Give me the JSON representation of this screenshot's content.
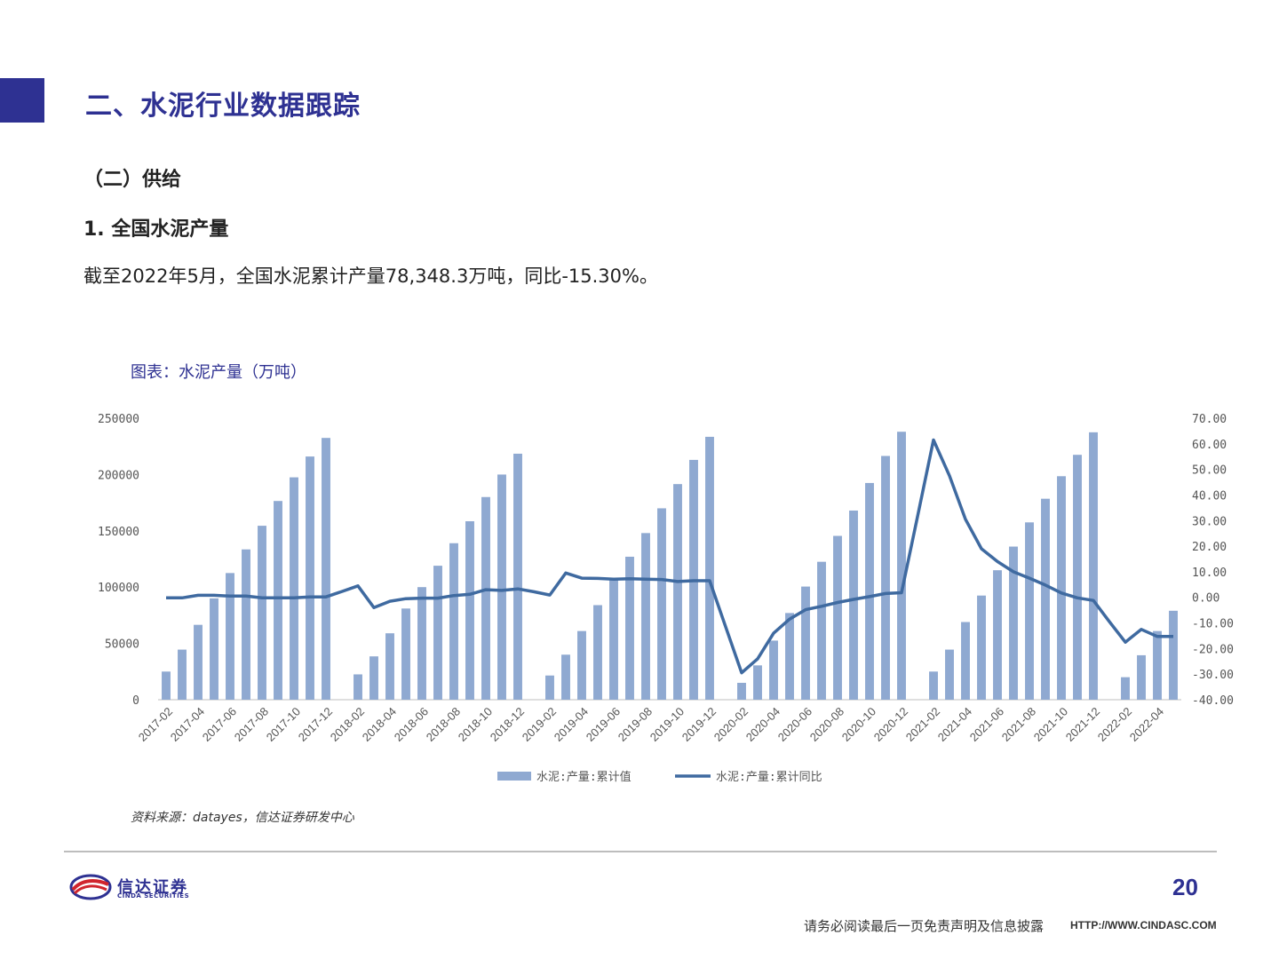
{
  "header": {
    "section_title": "二、水泥行业数据跟踪",
    "sub_heading": "（二）供给",
    "sub_heading2": "1. 全国水泥产量",
    "body_text": "截至2022年5月，全国水泥累计产量78,348.3万吨，同比-15.30%。",
    "chart_caption": "图表：水泥产量（万吨）"
  },
  "colors": {
    "brand": "#2e3192",
    "bar": "#8fa9d1",
    "line": "#3f6aa0",
    "accent_red": "#d0252d"
  },
  "chart_data": {
    "type": "bar",
    "title": "图表：水泥产量（万吨）",
    "categories": [
      "2017-02",
      "2017-03",
      "2017-04",
      "2017-05",
      "2017-06",
      "2017-07",
      "2017-08",
      "2017-09",
      "2017-10",
      "2017-11",
      "2017-12",
      "2018-01",
      "2018-02",
      "2018-03",
      "2018-04",
      "2018-05",
      "2018-06",
      "2018-07",
      "2018-08",
      "2018-09",
      "2018-10",
      "2018-11",
      "2018-12",
      "2019-01",
      "2019-02",
      "2019-03",
      "2019-04",
      "2019-05",
      "2019-06",
      "2019-07",
      "2019-08",
      "2019-09",
      "2019-10",
      "2019-11",
      "2019-12",
      "2020-01",
      "2020-02",
      "2020-03",
      "2020-04",
      "2020-05",
      "2020-06",
      "2020-07",
      "2020-08",
      "2020-09",
      "2020-10",
      "2020-11",
      "2020-12",
      "2021-01",
      "2021-02",
      "2021-03",
      "2021-04",
      "2021-05",
      "2021-06",
      "2021-07",
      "2021-08",
      "2021-09",
      "2021-10",
      "2021-11",
      "2021-12",
      "2022-01",
      "2022-02",
      "2022-03",
      "2022-04",
      "2022-05"
    ],
    "xtick_labels": [
      "2017-02",
      "2017-04",
      "2017-06",
      "2017-08",
      "2017-10",
      "2017-12",
      "2018-02",
      "2018-04",
      "2018-06",
      "2018-08",
      "2018-10",
      "2018-12",
      "2019-02",
      "2019-04",
      "2019-06",
      "2019-08",
      "2019-10",
      "2019-12",
      "2020-02",
      "2020-04",
      "2020-06",
      "2020-08",
      "2020-10",
      "2020-12",
      "2021-02",
      "2021-04",
      "2021-06",
      "2021-08",
      "2021-10",
      "2021-12",
      "2022-02",
      "2022-04"
    ],
    "series": [
      {
        "name": "水泥:产量:累计值",
        "type": "bar",
        "axis": "left",
        "values": [
          25000,
          44500,
          66500,
          90000,
          112500,
          133500,
          154500,
          176500,
          197500,
          216000,
          232500,
          null,
          22500,
          38500,
          59000,
          81000,
          100000,
          119000,
          139000,
          158500,
          180000,
          200000,
          218500,
          null,
          21500,
          40000,
          61000,
          84000,
          106500,
          127000,
          148000,
          170000,
          191500,
          213000,
          233500,
          null,
          15000,
          30500,
          52500,
          77000,
          100500,
          122500,
          145500,
          168000,
          192500,
          216500,
          238000,
          null,
          25000,
          44500,
          69000,
          92500,
          115000,
          136000,
          157500,
          178500,
          198500,
          217500,
          237500,
          null,
          20000,
          39500,
          61000,
          79000
        ]
      },
      {
        "name": "水泥:产量:累计同比",
        "type": "line",
        "axis": "right",
        "values": [
          -0.2,
          -0.2,
          0.8,
          0.8,
          0.5,
          0.5,
          -0.2,
          -0.2,
          -0.2,
          0.2,
          0.2,
          2.3,
          4.5,
          -4,
          -1.5,
          -0.5,
          -0.3,
          -0.3,
          0.7,
          1.2,
          3,
          2.7,
          3.3,
          2.2,
          0.9,
          9.5,
          7.5,
          7.4,
          7.1,
          7.3,
          7.1,
          7,
          6.2,
          6.5,
          6.5,
          -11.5,
          -29.5,
          -24,
          -14,
          -8.5,
          -4.8,
          -3.5,
          -2,
          -0.8,
          0.3,
          1.5,
          1.8,
          31.5,
          61.5,
          47.5,
          30.5,
          19,
          14,
          10,
          7.5,
          4.8,
          1.7,
          -0.2,
          -1.2,
          -9.5,
          -17.5,
          -12.5,
          -15.3,
          -15.3
        ]
      }
    ],
    "y_left": {
      "lim": [
        0,
        250000
      ],
      "ticks": [
        0,
        50000,
        100000,
        150000,
        200000,
        250000
      ],
      "tick_labels": [
        "0",
        "50000",
        "100000",
        "150000",
        "200000",
        "250000"
      ]
    },
    "y_right": {
      "lim": [
        -40,
        70
      ],
      "ticks": [
        -40,
        -30,
        -20,
        -10,
        0,
        10,
        20,
        30,
        40,
        50,
        60,
        70
      ],
      "tick_labels": [
        "-40.00",
        "-30.00",
        "-20.00",
        "-10.00",
        "0.00",
        "10.00",
        "20.00",
        "30.00",
        "40.00",
        "50.00",
        "60.00",
        "70.00"
      ]
    },
    "legend": {
      "position": "bottom",
      "items": [
        "水泥:产量:累计值",
        "水泥:产量:累计同比"
      ]
    },
    "grid": false
  },
  "footer": {
    "source_note": "资料来源：datayes，信达证券研发中心",
    "logo_name": "信达证券",
    "logo_sub": "CINDA SECURITIES",
    "page_number": "20",
    "disclaimer": "请务必阅读最后一页免责声明及信息披露",
    "url": "HTTP://WWW.CINDASC.COM"
  }
}
